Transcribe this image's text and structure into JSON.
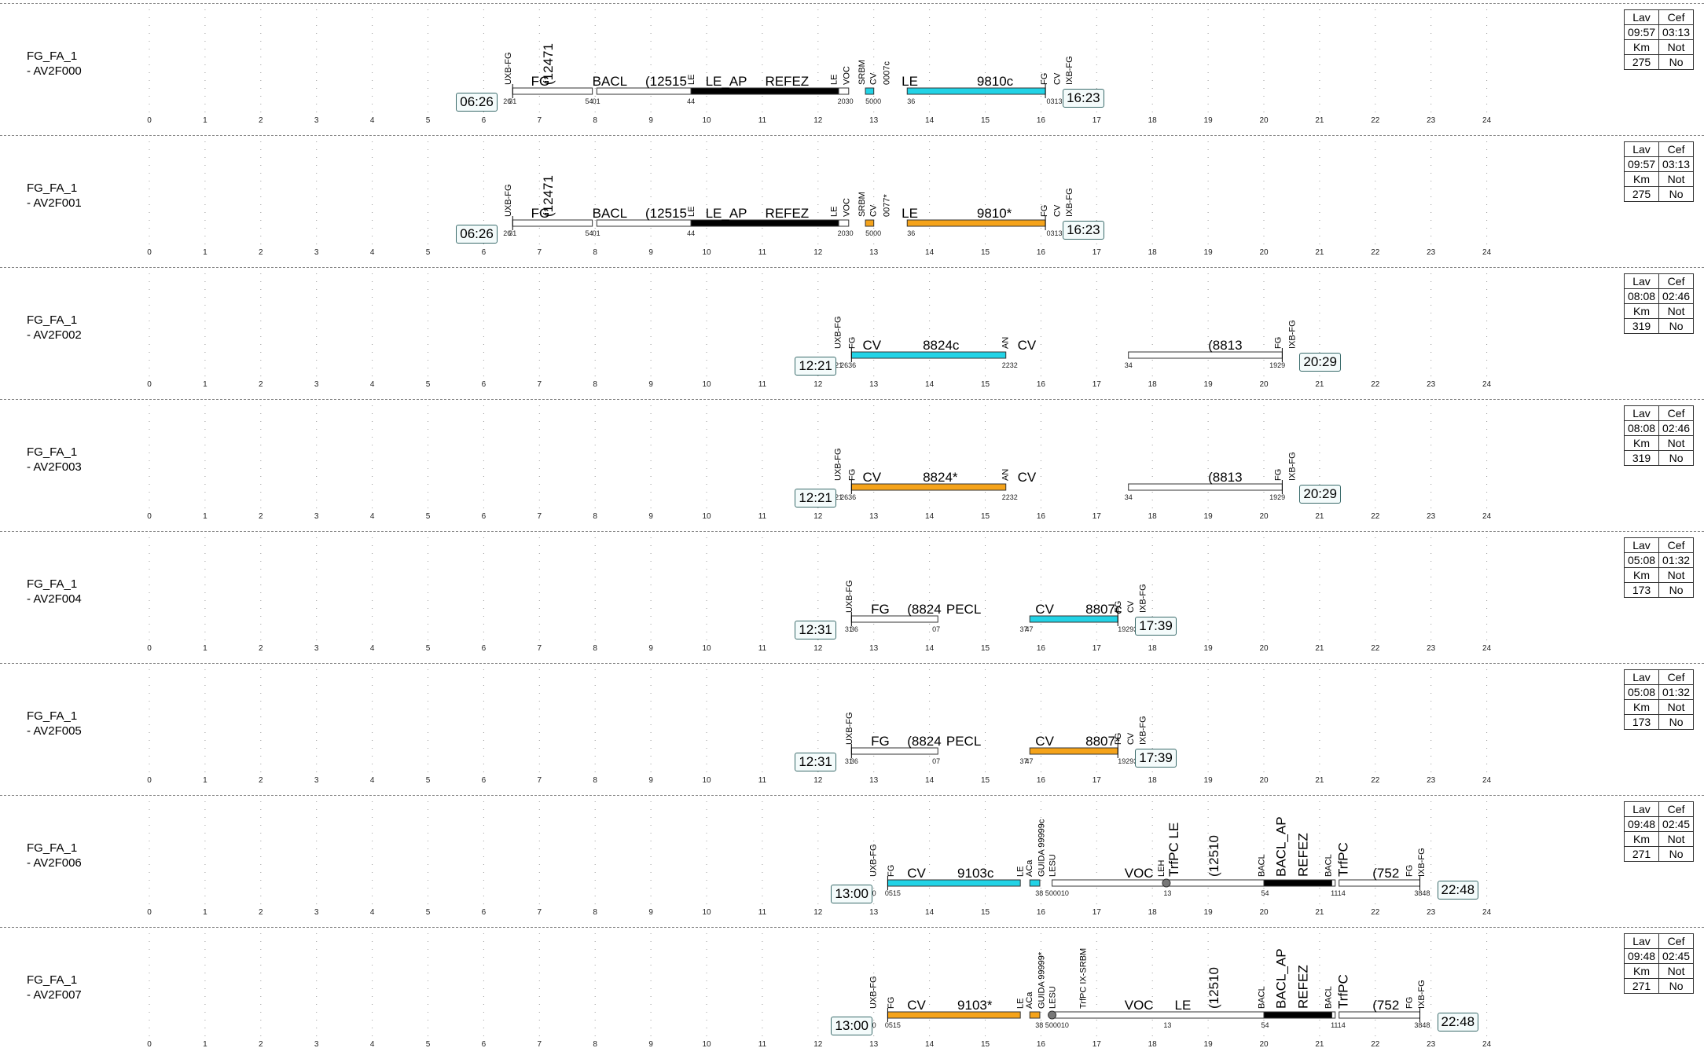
{
  "colors": {
    "cyan": "#22d3e6",
    "orange": "#f5a31a",
    "white": "#ffffff",
    "black": "#000000",
    "grid": "#9a9a9a"
  },
  "hours": [
    "0",
    "1",
    "2",
    "3",
    "4",
    "5",
    "6",
    "7",
    "8",
    "9",
    "10",
    "11",
    "12",
    "13",
    "14",
    "15",
    "16",
    "17",
    "18",
    "19",
    "20",
    "21",
    "22",
    "23",
    "24"
  ],
  "stat_labels": {
    "lav": "Lav",
    "cef": "Cef",
    "km": "Km",
    "not": "Not",
    "no": "No"
  },
  "rows": [
    {
      "name_line1": "FG_FA_1",
      "name_line2": "- AV2F000",
      "start": "06:26",
      "end": "16:23",
      "lav": "09:57",
      "cef": "03:13",
      "km": "275",
      "bars": [
        {
          "s": 6.52,
          "e": 7.95,
          "c": "white"
        },
        {
          "s": 8.03,
          "e": 9.72,
          "c": "white"
        },
        {
          "s": 9.72,
          "e": 12.4,
          "c": "black"
        },
        {
          "s": 12.37,
          "e": 12.55,
          "c": "white"
        },
        {
          "s": 12.85,
          "e": 13.0,
          "c": "cyan"
        },
        {
          "s": 13.6,
          "e": 16.08,
          "c": "cyan"
        }
      ],
      "labels": [
        {
          "t": "FG",
          "h": 6.85
        },
        {
          "t": "BACL",
          "h": 7.95
        },
        {
          "t": "(12515",
          "h": 8.9
        },
        {
          "t": "LE_AP",
          "h": 9.98
        },
        {
          "t": "REFEZ",
          "h": 11.05
        },
        {
          "t": "LE",
          "h": 13.5
        },
        {
          "t": "9810c",
          "h": 14.85
        }
      ],
      "vlabels": [
        {
          "t": "UXB-FG",
          "h": 6.43
        },
        {
          "t": "LE",
          "h": 9.72
        },
        {
          "t": "LE",
          "h": 12.28
        },
        {
          "t": "VOC",
          "h": 12.5
        },
        {
          "t": "SRBM",
          "h": 12.78
        },
        {
          "t": "CV",
          "h": 12.98
        },
        {
          "t": "0007c",
          "h": 13.22
        },
        {
          "t": "FG",
          "h": 16.05
        },
        {
          "t": "CV",
          "h": 16.28
        },
        {
          "t": "IXB-FG",
          "h": 16.5
        }
      ],
      "big_vlabels": [
        {
          "t": "(12471",
          "h": 7.15
        }
      ],
      "mins": [
        {
          "t": "26",
          "h": 6.35
        },
        {
          "t": "31",
          "h": 6.45
        },
        {
          "t": "01",
          "h": 7.95
        },
        {
          "t": "54",
          "h": 7.82
        },
        {
          "t": "44",
          "h": 9.65
        },
        {
          "t": "2030",
          "h": 12.35
        },
        {
          "t": "5000",
          "h": 12.85
        },
        {
          "t": "36",
          "h": 13.6
        },
        {
          "t": "031323",
          "h": 16.1
        }
      ]
    },
    {
      "name_line1": "FG_FA_1",
      "name_line2": "- AV2F001",
      "start": "06:26",
      "end": "16:23",
      "lav": "09:57",
      "cef": "03:13",
      "km": "275",
      "bars": [
        {
          "s": 6.52,
          "e": 7.95,
          "c": "white"
        },
        {
          "s": 8.03,
          "e": 9.72,
          "c": "white"
        },
        {
          "s": 9.72,
          "e": 12.4,
          "c": "black"
        },
        {
          "s": 12.37,
          "e": 12.55,
          "c": "white"
        },
        {
          "s": 12.85,
          "e": 13.0,
          "c": "orange"
        },
        {
          "s": 13.6,
          "e": 16.08,
          "c": "orange"
        }
      ],
      "labels": [
        {
          "t": "FG",
          "h": 6.85
        },
        {
          "t": "BACL",
          "h": 7.95
        },
        {
          "t": "(12515",
          "h": 8.9
        },
        {
          "t": "LE_AP",
          "h": 9.98
        },
        {
          "t": "REFEZ",
          "h": 11.05
        },
        {
          "t": "LE",
          "h": 13.5
        },
        {
          "t": "9810*",
          "h": 14.85
        }
      ],
      "vlabels": [
        {
          "t": "UXB-FG",
          "h": 6.43
        },
        {
          "t": "LE",
          "h": 9.72
        },
        {
          "t": "LE",
          "h": 12.28
        },
        {
          "t": "VOC",
          "h": 12.5
        },
        {
          "t": "SRBM",
          "h": 12.78
        },
        {
          "t": "CV",
          "h": 12.98
        },
        {
          "t": "0077*",
          "h": 13.22
        },
        {
          "t": "FG",
          "h": 16.05
        },
        {
          "t": "CV",
          "h": 16.28
        },
        {
          "t": "IXB-FG",
          "h": 16.5
        }
      ],
      "big_vlabels": [
        {
          "t": "(12471",
          "h": 7.15
        }
      ],
      "mins": [
        {
          "t": "26",
          "h": 6.35
        },
        {
          "t": "31",
          "h": 6.45
        },
        {
          "t": "01",
          "h": 7.95
        },
        {
          "t": "54",
          "h": 7.82
        },
        {
          "t": "44",
          "h": 9.65
        },
        {
          "t": "2030",
          "h": 12.35
        },
        {
          "t": "5000",
          "h": 12.85
        },
        {
          "t": "36",
          "h": 13.6
        },
        {
          "t": "031323",
          "h": 16.1
        }
      ]
    },
    {
      "name_line1": "FG_FA_1",
      "name_line2": "- AV2F002",
      "start": "12:21",
      "end": "20:29",
      "lav": "08:08",
      "cef": "02:46",
      "km": "319",
      "bars": [
        {
          "s": 12.6,
          "e": 15.37,
          "c": "cyan"
        },
        {
          "s": 17.57,
          "e": 20.33,
          "c": "white"
        }
      ],
      "labels": [
        {
          "t": "CV",
          "h": 12.8
        },
        {
          "t": "8824c",
          "h": 13.88
        },
        {
          "t": "CV",
          "h": 15.58
        },
        {
          "t": "(8813",
          "h": 19.0
        }
      ],
      "vlabels": [
        {
          "t": "UXB-FG",
          "h": 12.35
        },
        {
          "t": "FG",
          "h": 12.6
        },
        {
          "t": "AN",
          "h": 15.35
        },
        {
          "t": "FG",
          "h": 20.25
        },
        {
          "t": "IXB-FG",
          "h": 20.5
        }
      ],
      "big_vlabels": [],
      "mins": [
        {
          "t": "21",
          "h": 12.3
        },
        {
          "t": "2636",
          "h": 12.4
        },
        {
          "t": "2232",
          "h": 15.3
        },
        {
          "t": "34",
          "h": 17.5
        },
        {
          "t": "1929",
          "h": 20.1
        }
      ]
    },
    {
      "name_line1": "FG_FA_1",
      "name_line2": "- AV2F003",
      "start": "12:21",
      "end": "20:29",
      "lav": "08:08",
      "cef": "02:46",
      "km": "319",
      "bars": [
        {
          "s": 12.6,
          "e": 15.37,
          "c": "orange"
        },
        {
          "s": 17.57,
          "e": 20.33,
          "c": "white"
        }
      ],
      "labels": [
        {
          "t": "CV",
          "h": 12.8
        },
        {
          "t": "8824*",
          "h": 13.88
        },
        {
          "t": "CV",
          "h": 15.58
        },
        {
          "t": "(8813",
          "h": 19.0
        }
      ],
      "vlabels": [
        {
          "t": "UXB-FG",
          "h": 12.35
        },
        {
          "t": "FG",
          "h": 12.6
        },
        {
          "t": "AN",
          "h": 15.35
        },
        {
          "t": "FG",
          "h": 20.25
        },
        {
          "t": "IXB-FG",
          "h": 20.5
        }
      ],
      "big_vlabels": [],
      "mins": [
        {
          "t": "21",
          "h": 12.3
        },
        {
          "t": "2636",
          "h": 12.4
        },
        {
          "t": "2232",
          "h": 15.3
        },
        {
          "t": "34",
          "h": 17.5
        },
        {
          "t": "1929",
          "h": 20.1
        }
      ]
    },
    {
      "name_line1": "FG_FA_1",
      "name_line2": "- AV2F004",
      "start": "12:31",
      "end": "17:39",
      "lav": "05:08",
      "cef": "01:32",
      "km": "173",
      "bars": [
        {
          "s": 12.6,
          "e": 14.15,
          "c": "white"
        },
        {
          "s": 15.8,
          "e": 17.38,
          "c": "cyan"
        }
      ],
      "labels": [
        {
          "t": "FG",
          "h": 12.95
        },
        {
          "t": "(8824",
          "h": 13.6
        },
        {
          "t": "PECL",
          "h": 14.3
        },
        {
          "t": "CV",
          "h": 15.9
        },
        {
          "t": "8807c",
          "h": 16.8
        }
      ],
      "vlabels": [
        {
          "t": "UXB-FG",
          "h": 12.55
        },
        {
          "t": "FG",
          "h": 17.38
        },
        {
          "t": "CV",
          "h": 17.6
        },
        {
          "t": "IXB-FG",
          "h": 17.82
        }
      ],
      "big_vlabels": [],
      "mins": [
        {
          "t": "31",
          "h": 12.48
        },
        {
          "t": "36",
          "h": 12.58
        },
        {
          "t": "07",
          "h": 14.05
        },
        {
          "t": "37",
          "h": 15.62
        },
        {
          "t": "47",
          "h": 15.72
        },
        {
          "t": "192939",
          "h": 17.38
        }
      ]
    },
    {
      "name_line1": "FG_FA_1",
      "name_line2": "- AV2F005",
      "start": "12:31",
      "end": "17:39",
      "lav": "05:08",
      "cef": "01:32",
      "km": "173",
      "bars": [
        {
          "s": 12.6,
          "e": 14.15,
          "c": "white"
        },
        {
          "s": 15.8,
          "e": 17.38,
          "c": "orange"
        }
      ],
      "labels": [
        {
          "t": "FG",
          "h": 12.95
        },
        {
          "t": "(8824",
          "h": 13.6
        },
        {
          "t": "PECL",
          "h": 14.3
        },
        {
          "t": "CV",
          "h": 15.9
        },
        {
          "t": "8807*",
          "h": 16.8
        }
      ],
      "vlabels": [
        {
          "t": "UXB-FG",
          "h": 12.55
        },
        {
          "t": "FG",
          "h": 17.38
        },
        {
          "t": "CV",
          "h": 17.6
        },
        {
          "t": "IXB-FG",
          "h": 17.82
        }
      ],
      "big_vlabels": [],
      "mins": [
        {
          "t": "31",
          "h": 12.48
        },
        {
          "t": "36",
          "h": 12.58
        },
        {
          "t": "07",
          "h": 14.05
        },
        {
          "t": "37",
          "h": 15.62
        },
        {
          "t": "47",
          "h": 15.72
        },
        {
          "t": "192939",
          "h": 17.38
        }
      ]
    },
    {
      "name_line1": "FG_FA_1",
      "name_line2": "- AV2F006",
      "start": "13:00",
      "end": "22:48",
      "lav": "09:48",
      "cef": "02:45",
      "km": "271",
      "bars": [
        {
          "s": 13.25,
          "e": 15.63,
          "c": "cyan"
        },
        {
          "s": 15.8,
          "e": 15.98,
          "c": "cyan"
        },
        {
          "s": 16.2,
          "e": 20.0,
          "c": "white"
        },
        {
          "s": 20.0,
          "e": 21.22,
          "c": "black"
        },
        {
          "s": 21.22,
          "e": 21.28,
          "c": "white"
        },
        {
          "s": 21.35,
          "e": 22.8,
          "c": "white"
        }
      ],
      "labels": [
        {
          "t": "CV",
          "h": 13.6
        },
        {
          "t": "9103c",
          "h": 14.5
        },
        {
          "t": "VOC",
          "h": 17.5
        },
        {
          "t": "(752",
          "h": 21.95
        }
      ],
      "vlabels": [
        {
          "t": "UXB-FG",
          "h": 12.98
        },
        {
          "t": "FG",
          "h": 13.3
        },
        {
          "t": "LE",
          "h": 15.62
        },
        {
          "t": "ACa",
          "h": 15.78
        },
        {
          "t": "GUIDA 99999c",
          "h": 16.0
        },
        {
          "t": "LESU",
          "h": 16.2
        },
        {
          "t": "LEH",
          "h": 18.15
        },
        {
          "t": "BACL",
          "h": 19.95
        },
        {
          "t": "BACL",
          "h": 21.15
        },
        {
          "t": "FG",
          "h": 22.6
        },
        {
          "t": "IXB-FG",
          "h": 22.82
        }
      ],
      "big_vlabels": [
        {
          "t": "TrfPC LE",
          "h": 18.38
        },
        {
          "t": "(12510",
          "h": 19.1
        },
        {
          "t": "BACL_AP",
          "h": 20.3
        },
        {
          "t": "REFEZ",
          "h": 20.7
        },
        {
          "t": "TrfPC",
          "h": 21.42
        }
      ],
      "dots": [
        18.25
      ],
      "mins": [
        {
          "t": "00",
          "h": 12.9
        },
        {
          "t": "0515",
          "h": 13.2
        },
        {
          "t": "38 500010",
          "h": 15.9
        },
        {
          "t": "13",
          "h": 18.2
        },
        {
          "t": "54",
          "h": 19.95
        },
        {
          "t": "1114",
          "h": 21.2
        },
        {
          "t": "3848",
          "h": 22.7
        }
      ]
    },
    {
      "name_line1": "FG_FA_1",
      "name_line2": "- AV2F007",
      "start": "13:00",
      "end": "22:48",
      "lav": "09:48",
      "cef": "02:45",
      "km": "271",
      "bars": [
        {
          "s": 13.25,
          "e": 15.63,
          "c": "orange"
        },
        {
          "s": 15.8,
          "e": 15.98,
          "c": "orange"
        },
        {
          "s": 16.2,
          "e": 20.0,
          "c": "white"
        },
        {
          "s": 20.0,
          "e": 21.22,
          "c": "black"
        },
        {
          "s": 21.22,
          "e": 21.28,
          "c": "white"
        },
        {
          "s": 21.35,
          "e": 22.8,
          "c": "white"
        }
      ],
      "labels": [
        {
          "t": "CV",
          "h": 13.6
        },
        {
          "t": "9103*",
          "h": 14.5
        },
        {
          "t": "VOC",
          "h": 17.5
        },
        {
          "t": "LE",
          "h": 18.4
        },
        {
          "t": "(752",
          "h": 21.95
        }
      ],
      "vlabels": [
        {
          "t": "UXB-FG",
          "h": 12.98
        },
        {
          "t": "FG",
          "h": 13.3
        },
        {
          "t": "LE",
          "h": 15.62
        },
        {
          "t": "ACa",
          "h": 15.78
        },
        {
          "t": "GUIDA 99999*",
          "h": 16.0
        },
        {
          "t": "LESU",
          "h": 16.2
        },
        {
          "t": "TrfPC IX-SRBM",
          "h": 16.75
        },
        {
          "t": "BACL",
          "h": 19.95
        },
        {
          "t": "BACL",
          "h": 21.15
        },
        {
          "t": "FG",
          "h": 22.6
        },
        {
          "t": "IXB-FG",
          "h": 22.82
        }
      ],
      "big_vlabels": [
        {
          "t": "(12510",
          "h": 19.1
        },
        {
          "t": "BACL_AP",
          "h": 20.3
        },
        {
          "t": "REFEZ",
          "h": 20.7
        },
        {
          "t": "TrfPC",
          "h": 21.42
        }
      ],
      "dots": [
        16.2
      ],
      "mins": [
        {
          "t": "00",
          "h": 12.9
        },
        {
          "t": "0515",
          "h": 13.2
        },
        {
          "t": "38 500010",
          "h": 15.9
        },
        {
          "t": "13",
          "h": 18.2
        },
        {
          "t": "54",
          "h": 19.95
        },
        {
          "t": "1114",
          "h": 21.2
        },
        {
          "t": "3848",
          "h": 22.7
        }
      ]
    }
  ]
}
